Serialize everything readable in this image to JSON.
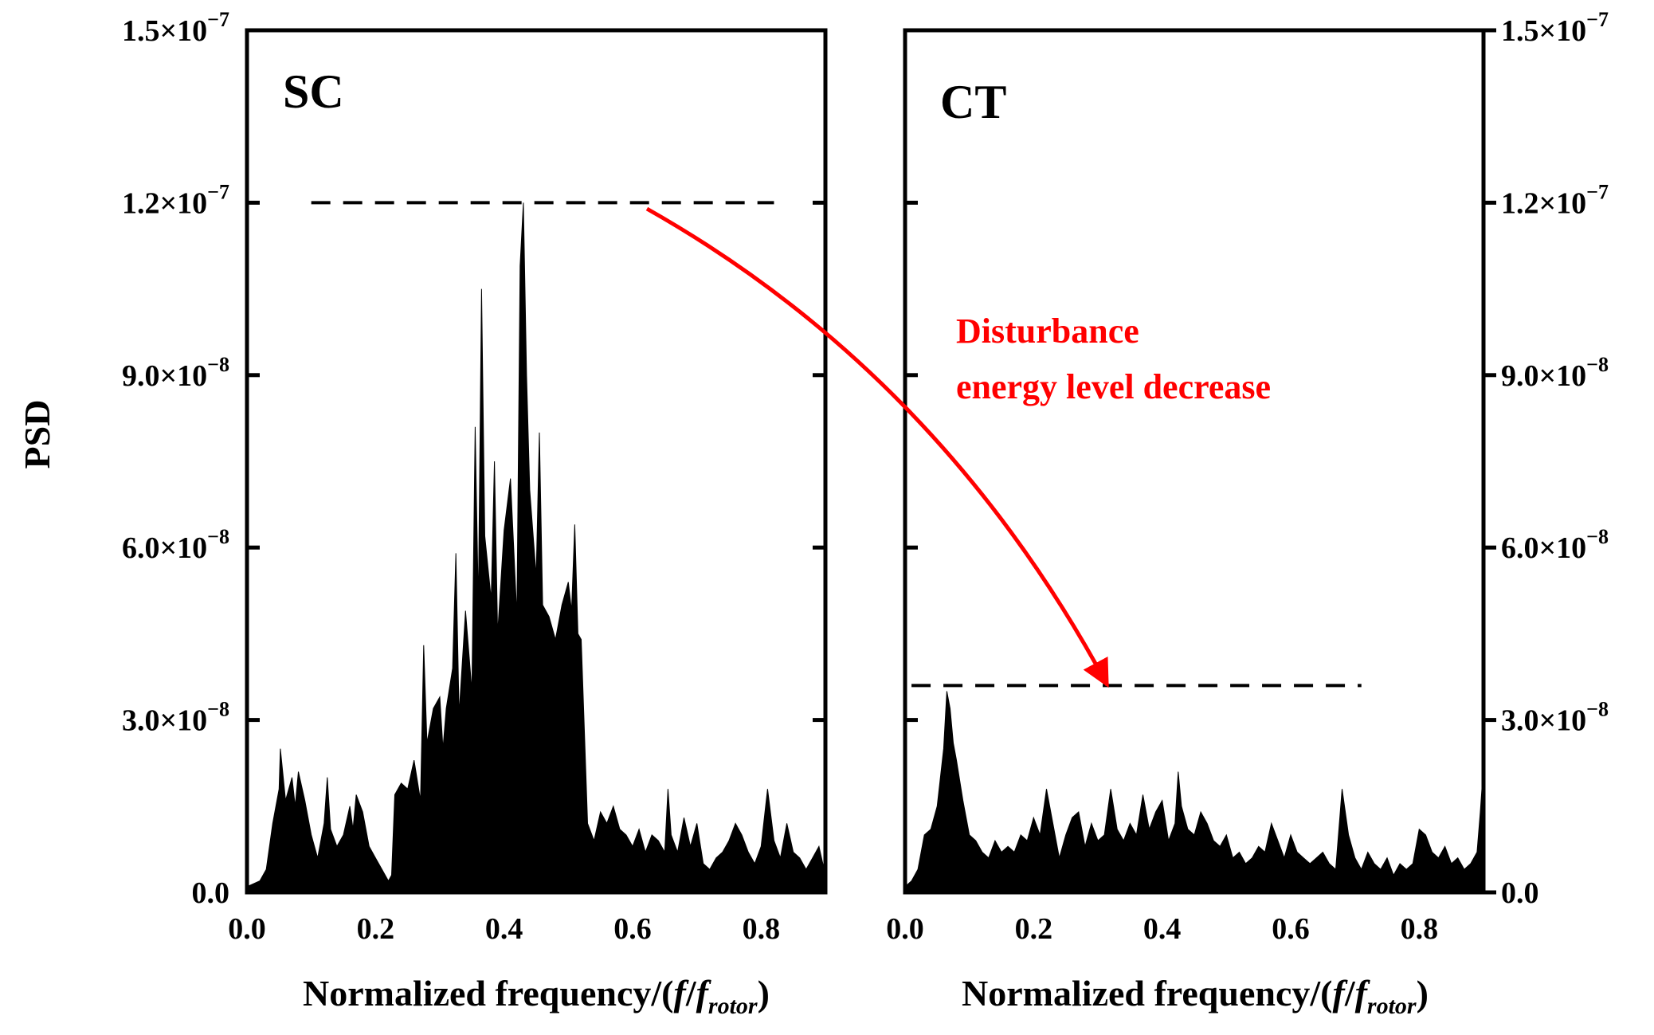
{
  "chart_data": [
    {
      "type": "area",
      "panel_label": "SC",
      "xlabel_main": "Normalized frequency/(",
      "xlabel_f": "f",
      "xlabel_slash": "/",
      "xlabel_f2": "f",
      "xlabel_sub": "rotor",
      "xlabel_close": ")",
      "ylabel": "PSD",
      "xlim": [
        0,
        0.9
      ],
      "ylim": [
        0,
        1.5e-07
      ],
      "x_ticks": [
        "0.0",
        "0.2",
        "0.4",
        "0.6",
        "0.8"
      ],
      "y_ticks": [
        {
          "mant": "0.0",
          "exp": ""
        },
        {
          "mant": "3.0×10",
          "exp": "−8"
        },
        {
          "mant": "6.0×10",
          "exp": "−8"
        },
        {
          "mant": "9.0×10",
          "exp": "−8"
        },
        {
          "mant": "1.2×10",
          "exp": "−7"
        },
        {
          "mant": "1.5×10",
          "exp": "−7"
        }
      ],
      "y_tick_values": [
        0,
        3e-08,
        6e-08,
        9e-08,
        1.2e-07,
        1.5e-07
      ],
      "reference_line": {
        "y": 1.2e-07,
        "x_range": [
          0.1,
          0.82
        ]
      },
      "color": "#000000",
      "series": [
        {
          "x": [
            0.0,
            0.01,
            0.02,
            0.03,
            0.04,
            0.05,
            0.052,
            0.06,
            0.07,
            0.075,
            0.08,
            0.09,
            0.1,
            0.11,
            0.12,
            0.125,
            0.13,
            0.14,
            0.15,
            0.16,
            0.165,
            0.17,
            0.18,
            0.19,
            0.2,
            0.21,
            0.22,
            0.225,
            0.23,
            0.24,
            0.25,
            0.26,
            0.27,
            0.275,
            0.28,
            0.29,
            0.3,
            0.305,
            0.31,
            0.32,
            0.325,
            0.33,
            0.34,
            0.35,
            0.355,
            0.36,
            0.365,
            0.37,
            0.38,
            0.385,
            0.39,
            0.4,
            0.41,
            0.42,
            0.425,
            0.43,
            0.435,
            0.44,
            0.45,
            0.455,
            0.46,
            0.47,
            0.48,
            0.49,
            0.5,
            0.505,
            0.51,
            0.515,
            0.52,
            0.53,
            0.54,
            0.55,
            0.56,
            0.57,
            0.58,
            0.59,
            0.6,
            0.61,
            0.62,
            0.63,
            0.64,
            0.65,
            0.655,
            0.66,
            0.67,
            0.68,
            0.69,
            0.7,
            0.71,
            0.72,
            0.73,
            0.74,
            0.75,
            0.76,
            0.77,
            0.78,
            0.79,
            0.8,
            0.81,
            0.82,
            0.83,
            0.84,
            0.85,
            0.86,
            0.87,
            0.88,
            0.89,
            0.9
          ],
          "y": [
            1e-09,
            1.5e-09,
            2e-09,
            4e-09,
            1.2e-08,
            1.8e-08,
            2.5e-08,
            1.6e-08,
            2e-08,
            1.5e-08,
            2.1e-08,
            1.6e-08,
            1e-08,
            6e-09,
            1.2e-08,
            2e-08,
            1.1e-08,
            8e-09,
            1e-08,
            1.5e-08,
            1.1e-08,
            1.7e-08,
            1.4e-08,
            8e-09,
            6e-09,
            4e-09,
            2e-09,
            3e-09,
            1.7e-08,
            1.9e-08,
            1.8e-08,
            2.3e-08,
            1.6e-08,
            4.3e-08,
            2.6e-08,
            3.2e-08,
            3.4e-08,
            2.5e-08,
            3.2e-08,
            3.9e-08,
            5.9e-08,
            3.1e-08,
            4.9e-08,
            3.5e-08,
            8.1e-08,
            5e-08,
            1.05e-07,
            6.2e-08,
            5.1e-08,
            7.5e-08,
            4.5e-08,
            6.3e-08,
            7.2e-08,
            4.8e-08,
            1.09e-07,
            1.2e-07,
            9e-08,
            7e-08,
            5.5e-08,
            8e-08,
            5e-08,
            4.8e-08,
            4.4e-08,
            5e-08,
            5.4e-08,
            4.9e-08,
            6.4e-08,
            4.5e-08,
            4.4e-08,
            1.2e-08,
            9e-09,
            1.4e-08,
            1.2e-08,
            1.5e-08,
            1.1e-08,
            1e-08,
            8e-09,
            1.1e-08,
            7e-09,
            1e-08,
            9e-09,
            7e-09,
            1.8e-08,
            1e-08,
            7e-09,
            1.3e-08,
            8e-09,
            1.2e-08,
            5e-09,
            4e-09,
            6e-09,
            7e-09,
            9e-09,
            1.2e-08,
            1e-08,
            7e-09,
            5e-09,
            8e-09,
            1.8e-08,
            9e-09,
            6e-09,
            1.2e-08,
            7e-09,
            6e-09,
            4e-09,
            6e-09,
            8e-09,
            3e-09
          ]
        }
      ]
    },
    {
      "type": "area",
      "panel_label": "CT",
      "xlabel_main": "Normalized frequency/(",
      "xlabel_f": "f",
      "xlabel_slash": "/",
      "xlabel_f2": "f",
      "xlabel_sub": "rotor",
      "xlabel_close": ")",
      "xlim": [
        0,
        0.9
      ],
      "ylim": [
        0,
        1.5e-07
      ],
      "x_ticks": [
        "0.0",
        "0.2",
        "0.4",
        "0.6",
        "0.8"
      ],
      "y_ticks": [
        {
          "mant": "0.0",
          "exp": ""
        },
        {
          "mant": "3.0×10",
          "exp": "−8"
        },
        {
          "mant": "6.0×10",
          "exp": "−8"
        },
        {
          "mant": "9.0×10",
          "exp": "−8"
        },
        {
          "mant": "1.2×10",
          "exp": "−7"
        },
        {
          "mant": "1.5×10",
          "exp": "−7"
        }
      ],
      "y_tick_values": [
        0,
        3e-08,
        6e-08,
        9e-08,
        1.2e-07,
        1.5e-07
      ],
      "reference_line": {
        "y": 3.6e-08,
        "x_range": [
          0.01,
          0.71
        ]
      },
      "color": "#000000",
      "series": [
        {
          "x": [
            0.0,
            0.01,
            0.02,
            0.03,
            0.04,
            0.05,
            0.06,
            0.065,
            0.07,
            0.075,
            0.08,
            0.09,
            0.1,
            0.11,
            0.12,
            0.13,
            0.14,
            0.15,
            0.16,
            0.17,
            0.18,
            0.19,
            0.2,
            0.21,
            0.22,
            0.23,
            0.24,
            0.25,
            0.26,
            0.27,
            0.28,
            0.29,
            0.3,
            0.31,
            0.32,
            0.33,
            0.34,
            0.35,
            0.36,
            0.37,
            0.38,
            0.39,
            0.4,
            0.41,
            0.42,
            0.425,
            0.43,
            0.44,
            0.45,
            0.46,
            0.47,
            0.48,
            0.49,
            0.5,
            0.51,
            0.52,
            0.53,
            0.54,
            0.55,
            0.56,
            0.57,
            0.58,
            0.59,
            0.6,
            0.61,
            0.62,
            0.63,
            0.64,
            0.65,
            0.66,
            0.67,
            0.68,
            0.69,
            0.7,
            0.71,
            0.72,
            0.73,
            0.74,
            0.75,
            0.76,
            0.77,
            0.78,
            0.79,
            0.8,
            0.81,
            0.82,
            0.83,
            0.84,
            0.85,
            0.86,
            0.87,
            0.88,
            0.89,
            0.895,
            0.9
          ],
          "y": [
            1e-09,
            2e-09,
            4e-09,
            1e-08,
            1.1e-08,
            1.5e-08,
            2.5e-08,
            3.5e-08,
            3.2e-08,
            2.6e-08,
            2.3e-08,
            1.6e-08,
            1e-08,
            9e-09,
            7e-09,
            6e-09,
            9e-09,
            7e-09,
            8e-09,
            7e-09,
            1e-08,
            9e-09,
            1.3e-08,
            1e-08,
            1.8e-08,
            1.2e-08,
            6e-09,
            1e-08,
            1.3e-08,
            1.4e-08,
            8e-09,
            1.2e-08,
            9e-09,
            1e-08,
            1.8e-08,
            1.1e-08,
            9e-09,
            1.2e-08,
            1e-08,
            1.7e-08,
            1.1e-08,
            1.4e-08,
            1.6e-08,
            9e-09,
            1.2e-08,
            2.1e-08,
            1.5e-08,
            1.1e-08,
            1e-08,
            1.4e-08,
            1.2e-08,
            9e-09,
            8e-09,
            1e-08,
            6e-09,
            7e-09,
            5e-09,
            6e-09,
            8e-09,
            7e-09,
            1.2e-08,
            9e-09,
            6e-09,
            1e-08,
            7e-09,
            6e-09,
            5e-09,
            6e-09,
            7e-09,
            5e-09,
            4e-09,
            1.8e-08,
            1e-08,
            6e-09,
            4e-09,
            7e-09,
            5e-09,
            4e-09,
            6e-09,
            3e-09,
            5e-09,
            4e-09,
            5e-09,
            1.1e-08,
            1e-08,
            7e-09,
            6e-09,
            8e-09,
            5e-09,
            6e-09,
            4e-09,
            5e-09,
            7e-09,
            1.4e-08,
            2.2e-08
          ]
        }
      ]
    }
  ],
  "annotation": {
    "line1": "Disturbance",
    "line2": "energy level decrease",
    "color": "#ff0000"
  }
}
